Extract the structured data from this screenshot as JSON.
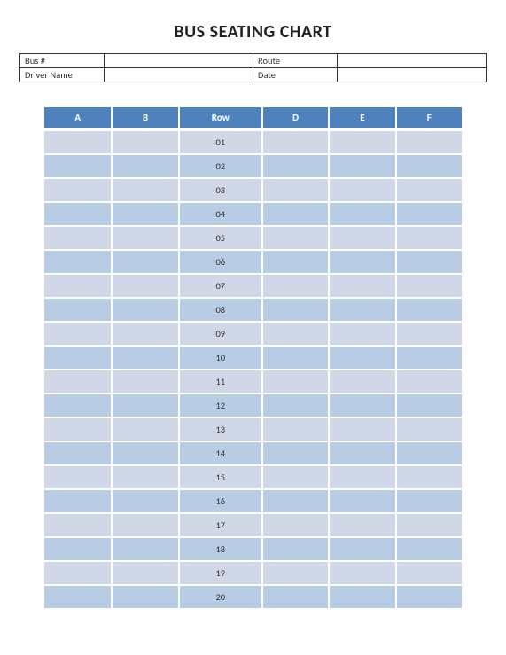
{
  "title": "BUS SEATING CHART",
  "info": {
    "bus_label": "Bus #",
    "bus_value": "",
    "route_label": "Route",
    "route_value": "",
    "driver_label": "Driver Name",
    "driver_value": "",
    "date_label": "Date",
    "date_value": ""
  },
  "seating": {
    "type": "table",
    "columns": [
      "A",
      "B",
      "Row",
      "D",
      "E",
      "F"
    ],
    "row_count": 20,
    "row_labels": [
      "01",
      "02",
      "03",
      "04",
      "05",
      "06",
      "07",
      "08",
      "09",
      "10",
      "11",
      "12",
      "13",
      "14",
      "15",
      "16",
      "17",
      "18",
      "19",
      "20"
    ],
    "header_bg": "#4f81bd",
    "header_text": "#ffffff",
    "row_odd_bg": "#d0d8e8",
    "row_even_bg": "#b8cce4",
    "grid_color": "#ffffff",
    "cell_colors": {
      "A": "",
      "B": "",
      "D": "",
      "E": "",
      "F": ""
    },
    "col_widths_pct": [
      16,
      16,
      20,
      16,
      16,
      16
    ],
    "header_fontsize": 11,
    "cell_fontsize": 10.5
  }
}
